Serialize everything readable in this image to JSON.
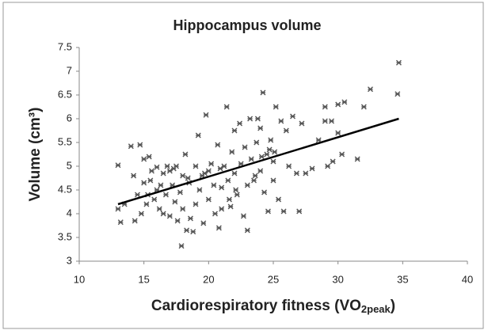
{
  "chart_data": {
    "type": "scatter",
    "title": "Hippocampus volume",
    "xlabel": [
      "Cardiorespiratory fitness (VO",
      "2peak",
      ")"
    ],
    "ylabel": "Volume (cm³)",
    "color": "#555555",
    "xlim": [
      10,
      40
    ],
    "xticks": [
      10,
      15,
      20,
      25,
      30,
      35,
      40
    ],
    "ylim": [
      3,
      7.5
    ],
    "yticks": [
      3,
      3.5,
      4,
      4.5,
      5,
      5.5,
      6,
      6.5,
      7,
      7.5
    ],
    "x": [
      13,
      13,
      13.2,
      13.5,
      14,
      14.2,
      14.3,
      14.5,
      14.7,
      14.8,
      15,
      15,
      15.2,
      15.4,
      15.5,
      15.6,
      15.8,
      16,
      16,
      16.2,
      16.3,
      16.5,
      16.5,
      16.7,
      17,
      17,
      17.2,
      17.4,
      17.5,
      17.6,
      17.8,
      17.9,
      18,
      18,
      18.2,
      18.3,
      18.5,
      18.6,
      18.8,
      19,
      19,
      19.2,
      19.3,
      19.5,
      19.6,
      19.8,
      20,
      20,
      20.2,
      20.4,
      20.5,
      20.7,
      20.8,
      21,
      21,
      21.2,
      21.4,
      21.5,
      21.6,
      21.8,
      22,
      22,
      22.2,
      22.4,
      22.5,
      22.7,
      22.8,
      23,
      23,
      23.2,
      23.3,
      23.5,
      23.7,
      23.8,
      24,
      24,
      24.2,
      24.3,
      24.5,
      24.6,
      24.7,
      24.8,
      25,
      25,
      25.2,
      25.4,
      25.6,
      25.8,
      26,
      26.2,
      26.5,
      27,
      27.2,
      27.5,
      28,
      28.5,
      29,
      29,
      29.2,
      29.5,
      29.6,
      30,
      30,
      30.3,
      30.5,
      31.5,
      32,
      32.5,
      34.6,
      34.7,
      16.8,
      17.3,
      18.4,
      19.7,
      20.9,
      22.1,
      23.6,
      25.1,
      26.8,
      24.1,
      21.7,
      15.3
    ],
    "y": [
      5.02,
      4.1,
      3.82,
      4.2,
      5.42,
      4.8,
      3.85,
      4.4,
      5.45,
      4.0,
      4.65,
      5.15,
      4.2,
      5.2,
      4.7,
      4.9,
      4.3,
      4.5,
      4.98,
      4.1,
      4.6,
      4.0,
      4.85,
      4.4,
      4.9,
      3.95,
      4.6,
      4.25,
      5.0,
      3.85,
      4.45,
      3.32,
      4.8,
      4.1,
      5.25,
      3.65,
      4.65,
      3.9,
      3.62,
      4.2,
      5.0,
      5.65,
      4.5,
      4.8,
      3.8,
      6.08,
      4.9,
      4.3,
      5.05,
      4.6,
      4.0,
      5.45,
      3.7,
      4.55,
      4.1,
      5.0,
      6.25,
      4.7,
      4.3,
      5.3,
      4.85,
      5.75,
      4.4,
      5.9,
      5.05,
      3.95,
      5.4,
      4.6,
      3.65,
      6.0,
      5.15,
      4.7,
      5.5,
      6.0,
      4.9,
      5.8,
      6.55,
      4.45,
      5.25,
      4.05,
      5.35,
      5.55,
      4.7,
      5.1,
      6.25,
      4.3,
      5.95,
      4.05,
      5.75,
      5.0,
      6.05,
      4.05,
      5.9,
      4.85,
      4.95,
      5.55,
      6.25,
      5.95,
      5.0,
      5.95,
      5.1,
      6.3,
      5.7,
      5.25,
      6.35,
      5.15,
      6.25,
      6.62,
      6.52,
      7.18,
      5.0,
      4.95,
      4.75,
      4.85,
      4.95,
      4.5,
      4.8,
      5.3,
      4.85,
      5.2,
      4.15,
      4.4
    ],
    "trendline": {
      "x": [
        13,
        34.7
      ],
      "y": [
        4.2,
        6.0
      ],
      "color": "#000000"
    }
  }
}
